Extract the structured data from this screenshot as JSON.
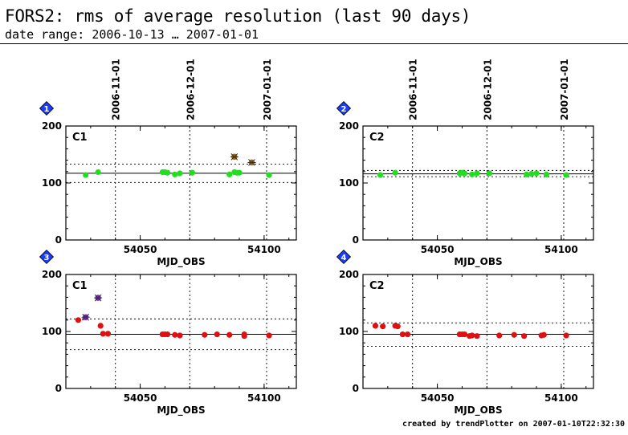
{
  "header": {
    "title": "FORS2: rms of average resolution (last 90 days)",
    "subtitle": "date range: 2006-10-13 … 2007-01-01"
  },
  "footer": {
    "note": "created by trendPlotter on 2007-01-10T22:32:30"
  },
  "colors": {
    "green_points": "#22dd22",
    "red_points": "#e01010",
    "outlier_brown": "#a06a10",
    "outlier_purple": "#7a22c8",
    "badge_blue": "#1a3cff"
  },
  "chart_data": [
    {
      "type": "scatter",
      "panel": "1",
      "label": "C1",
      "xlabel": "MJD_OBS",
      "xlim": [
        54020,
        54113
      ],
      "ylim": [
        0,
        200
      ],
      "yticks": [
        0,
        100,
        200
      ],
      "xticks": [
        54050,
        54100
      ],
      "top_ticks": [
        {
          "x": 54040,
          "label": "2006-11-01"
        },
        {
          "x": 54070,
          "label": "2006-12-01"
        },
        {
          "x": 54101,
          "label": "2007-01-01"
        }
      ],
      "mean": 117,
      "band": [
        101,
        133
      ],
      "series": [
        {
          "color": "green",
          "points": [
            [
              54028,
              114
            ],
            [
              54033,
              119
            ],
            [
              54059,
              119
            ],
            [
              54060,
              119
            ],
            [
              54061,
              118
            ],
            [
              54064,
              115
            ],
            [
              54066,
              117
            ],
            [
              54071,
              118
            ],
            [
              54086,
              115
            ],
            [
              54088,
              119
            ],
            [
              54089,
              118
            ],
            [
              54090,
              118
            ],
            [
              54102,
              114
            ]
          ]
        },
        {
          "color": "brown",
          "marker": "star",
          "points": [
            [
              54088,
              146
            ],
            [
              54095,
              136
            ]
          ]
        }
      ]
    },
    {
      "type": "scatter",
      "panel": "2",
      "label": "C2",
      "xlabel": "MJD_OBS",
      "xlim": [
        54020,
        54113
      ],
      "ylim": [
        0,
        200
      ],
      "yticks": [
        0,
        100,
        200
      ],
      "xticks": [
        54050,
        54100
      ],
      "top_ticks": [
        {
          "x": 54040,
          "label": "2006-11-01"
        },
        {
          "x": 54070,
          "label": "2006-12-01"
        },
        {
          "x": 54101,
          "label": "2007-01-01"
        }
      ],
      "mean": 116,
      "band": [
        111,
        122
      ],
      "series": [
        {
          "color": "green",
          "points": [
            [
              54027,
              114
            ],
            [
              54033,
              118
            ],
            [
              54059,
              117
            ],
            [
              54060,
              118
            ],
            [
              54061,
              117
            ],
            [
              54064,
              115
            ],
            [
              54066,
              117
            ],
            [
              54071,
              117
            ],
            [
              54086,
              115
            ],
            [
              54088,
              116
            ],
            [
              54090,
              117
            ],
            [
              54094,
              115
            ],
            [
              54102,
              114
            ]
          ]
        }
      ]
    },
    {
      "type": "scatter",
      "panel": "3",
      "label": "C1",
      "xlabel": "MJD_OBS",
      "xlim": [
        54020,
        54113
      ],
      "ylim": [
        0,
        200
      ],
      "yticks": [
        0,
        100,
        200
      ],
      "xticks": [
        54050,
        54100
      ],
      "mean": 95,
      "band": [
        68,
        122
      ],
      "series": [
        {
          "color": "red",
          "points": [
            [
              54025,
              120
            ],
            [
              54034,
              110
            ],
            [
              54035,
              96
            ],
            [
              54037,
              96
            ],
            [
              54059,
              95
            ],
            [
              54060,
              95
            ],
            [
              54061,
              95
            ],
            [
              54064,
              94
            ],
            [
              54066,
              93
            ],
            [
              54076,
              94
            ],
            [
              54081,
              95
            ],
            [
              54086,
              94
            ],
            [
              54092,
              95
            ],
            [
              54092,
              92
            ],
            [
              54102,
              93
            ]
          ]
        },
        {
          "color": "purple",
          "marker": "star",
          "points": [
            [
              54028,
              125
            ],
            [
              54033,
              159
            ]
          ]
        }
      ]
    },
    {
      "type": "scatter",
      "panel": "4",
      "label": "C2",
      "xlabel": "MJD_OBS",
      "xlim": [
        54020,
        54113
      ],
      "ylim": [
        0,
        200
      ],
      "yticks": [
        0,
        100,
        200
      ],
      "xticks": [
        54050,
        54100
      ],
      "mean": 95,
      "band": [
        74,
        115
      ],
      "series": [
        {
          "color": "red",
          "points": [
            [
              54025,
              110
            ],
            [
              54028,
              109
            ],
            [
              54033,
              110
            ],
            [
              54034,
              109
            ],
            [
              54036,
              95
            ],
            [
              54038,
              95
            ],
            [
              54059,
              95
            ],
            [
              54060,
              95
            ],
            [
              54061,
              95
            ],
            [
              54063,
              92
            ],
            [
              54064,
              93
            ],
            [
              54066,
              92
            ],
            [
              54075,
              93
            ],
            [
              54081,
              94
            ],
            [
              54085,
              92
            ],
            [
              54092,
              93
            ],
            [
              54093,
              94
            ],
            [
              54102,
              93
            ]
          ]
        }
      ]
    }
  ]
}
